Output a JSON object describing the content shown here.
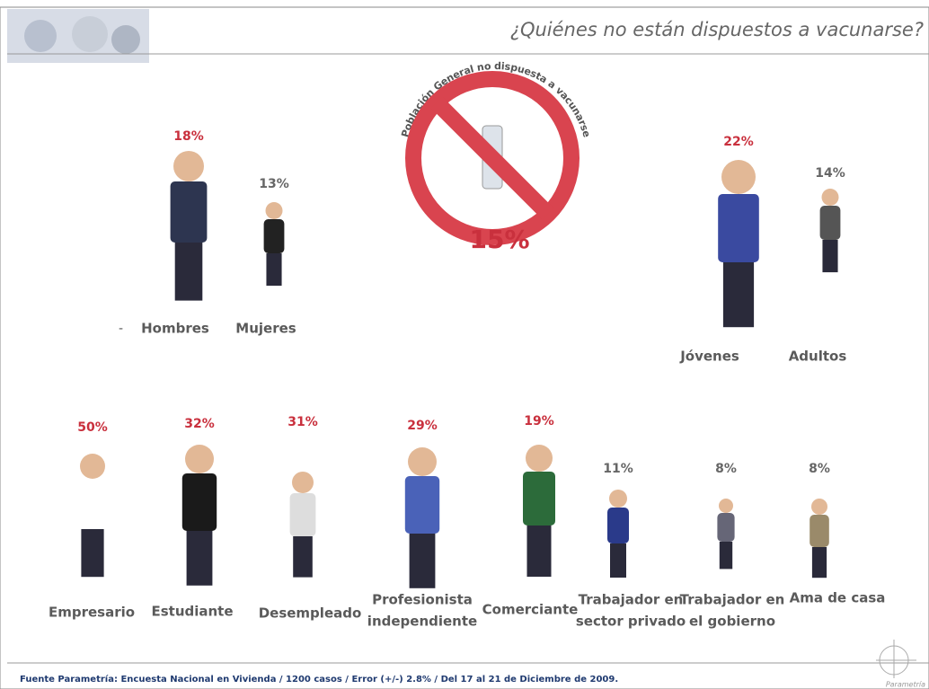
{
  "header": {
    "title": "¿Quiénes no están dispuestos a vacunarse?"
  },
  "overall": {
    "caption": "Población General no dispuesta a vacunarse",
    "percent": "15%"
  },
  "stray_mark": "-",
  "gender": [
    {
      "label": [
        "Hombres"
      ],
      "percent": "18%"
    },
    {
      "label": [
        "Mujeres"
      ],
      "percent": "13%"
    }
  ],
  "age": [
    {
      "label": [
        "Jóvenes"
      ],
      "percent": "22%"
    },
    {
      "label": [
        "Adultos"
      ],
      "percent": "14%"
    }
  ],
  "occupation": [
    {
      "label": [
        "Empresario"
      ],
      "percent": "50%"
    },
    {
      "label": [
        "Estudiante"
      ],
      "percent": "32%"
    },
    {
      "label": [
        "Desempleado"
      ],
      "percent": "31%"
    },
    {
      "label": [
        "Profesionista",
        "independiente"
      ],
      "percent": "29%"
    },
    {
      "label": [
        "Comerciante"
      ],
      "percent": "19%"
    },
    {
      "label": [
        "Trabajador en",
        "sector privado"
      ],
      "percent": "11%"
    },
    {
      "label": [
        "Trabajador en",
        "el gobierno"
      ],
      "percent": "8%"
    },
    {
      "label": [
        "Ama de casa"
      ],
      "percent": "8%"
    }
  ],
  "footer": {
    "source": "Fuente Parametría: Encuesta Nacional en Vivienda / 1200 casos / Error (+/-) 2.8% / Del 17 al 21 de Diciembre de 2009.",
    "logo": "Parametría"
  }
}
